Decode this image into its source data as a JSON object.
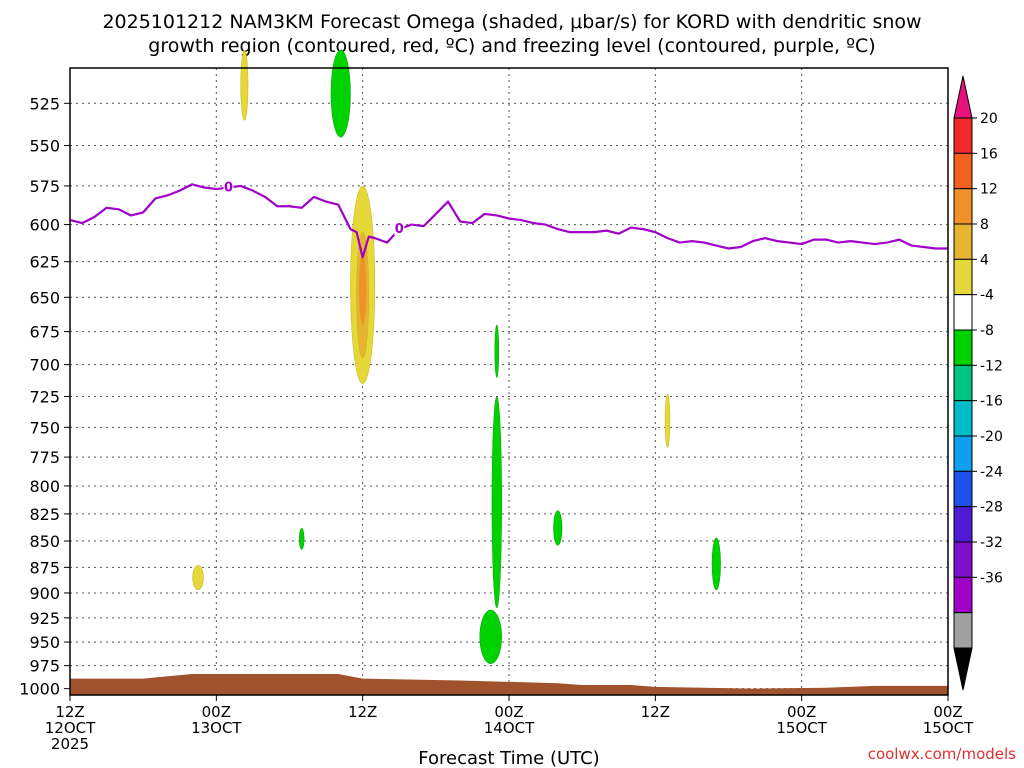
{
  "chart_data": {
    "type": "heatmap",
    "title_line1": "2025101212 NAM3KM Forecast Omega (shaded, μbar/s) for KORD with dendritic snow",
    "title_line2": "growth region (contoured, red, ºC) and freezing level (contoured, purple, ºC)",
    "xlabel": "Forecast Time (UTC)",
    "credit": "coolwx.com/models",
    "y_axis": {
      "ticks": [
        525,
        550,
        575,
        600,
        625,
        650,
        675,
        700,
        725,
        750,
        775,
        800,
        825,
        850,
        875,
        900,
        925,
        950,
        975,
        1000
      ],
      "range": [
        505,
        1007
      ],
      "scale": "log-pressure",
      "grid": true
    },
    "x_axis": {
      "range": [
        0,
        72
      ],
      "grid": true,
      "ticks": [
        {
          "hour": 0,
          "line1": "12Z",
          "line2": "12OCT",
          "line3": "2025"
        },
        {
          "hour": 12,
          "line1": "00Z",
          "line2": "13OCT",
          "line3": ""
        },
        {
          "hour": 24,
          "line1": "12Z",
          "line2": "",
          "line3": ""
        },
        {
          "hour": 36,
          "line1": "00Z",
          "line2": "14OCT",
          "line3": ""
        },
        {
          "hour": 48,
          "line1": "12Z",
          "line2": "",
          "line3": ""
        },
        {
          "hour": 60,
          "line1": "00Z",
          "line2": "15OCT",
          "line3": ""
        }
      ]
    },
    "colorbar": {
      "labels": [
        "20",
        "16",
        "12",
        "8",
        "4",
        "-4",
        "-8",
        "-12",
        "-16",
        "-20",
        "-24",
        "-28",
        "-32",
        "-36"
      ],
      "colors": [
        "#e8127f",
        "#f02a2a",
        "#f2601e",
        "#f0902a",
        "#e6b431",
        "#e6d838",
        "#ffffff",
        "#00d200",
        "#00c483",
        "#00bcc8",
        "#0f9fef",
        "#1e50eb",
        "#4f1ad4",
        "#7d10c8",
        "#a000c8",
        "#a0a0a0",
        "#000000"
      ]
    },
    "freezing_level": {
      "color": "#a000c8",
      "contour_label": "0",
      "x": [
        0,
        1,
        2,
        3,
        4,
        5,
        6,
        7,
        8,
        9,
        10,
        11,
        12,
        13,
        14,
        15,
        16,
        17,
        18,
        19,
        20,
        21,
        22,
        23,
        23.5,
        24,
        24.5,
        25,
        26,
        27,
        28,
        29,
        30,
        31,
        32,
        33,
        34,
        35,
        36,
        37,
        38,
        39,
        40,
        41,
        42,
        43,
        44,
        45,
        46,
        47,
        48,
        49,
        50,
        51,
        52,
        53,
        54,
        55,
        56,
        57,
        58,
        59,
        60,
        61,
        62,
        63,
        64,
        65,
        66,
        67,
        68,
        69,
        70,
        71,
        72
      ],
      "y": [
        597,
        599,
        595,
        589,
        590,
        594,
        592,
        583,
        581,
        578,
        574,
        576,
        577,
        576,
        575,
        578,
        582,
        588,
        588,
        589,
        582,
        585,
        587,
        603,
        605,
        622,
        608,
        609,
        612,
        603,
        600,
        601,
        593,
        585,
        598,
        599,
        593,
        594,
        596,
        597,
        599,
        600,
        603,
        605,
        605,
        605,
        604,
        606,
        602,
        603,
        605,
        609,
        612,
        611,
        612,
        614,
        616,
        615,
        611,
        609,
        611,
        612,
        613,
        610,
        610,
        612,
        611,
        612,
        613,
        612,
        610,
        614,
        615,
        616,
        616
      ]
    },
    "terrain": {
      "color": "#a0522d",
      "x": [
        0,
        6,
        10,
        22,
        24,
        32,
        40,
        42,
        46,
        48,
        52,
        56,
        62,
        66,
        72
      ],
      "y": [
        989,
        989,
        984,
        984,
        989,
        991,
        994,
        996,
        996,
        998,
        999,
        1000,
        999,
        997,
        997
      ]
    },
    "omega_features": [
      {
        "value": 5,
        "hour": 14.3,
        "p_center": 515,
        "half_hours": 0.3,
        "half_p": 20,
        "color": "#e6d838"
      },
      {
        "value": -5,
        "hour": 22.2,
        "p_center": 520,
        "half_hours": 0.8,
        "half_p": 25,
        "color": "#00d200"
      },
      {
        "value": 6,
        "hour": 24.0,
        "p_center": 645,
        "half_hours": 1.0,
        "half_p": 70,
        "color": "#e6d838"
      },
      {
        "value": 10,
        "hour": 24.0,
        "p_center": 650,
        "half_hours": 0.5,
        "half_p": 45,
        "color": "#e6b431"
      },
      {
        "value": 13,
        "hour": 24.0,
        "p_center": 645,
        "half_hours": 0.3,
        "half_p": 25,
        "color": "#f0902a"
      },
      {
        "value": -5,
        "hour": 35.0,
        "p_center": 690,
        "half_hours": 0.15,
        "half_p": 20,
        "color": "#00d200"
      },
      {
        "value": -5,
        "hour": 35.0,
        "p_center": 820,
        "half_hours": 0.4,
        "half_p": 95,
        "color": "#00d200"
      },
      {
        "value": 5,
        "hour": 10.5,
        "p_center": 885,
        "half_hours": 0.45,
        "half_p": 12,
        "color": "#e6d838"
      },
      {
        "value": -5,
        "hour": 19.0,
        "p_center": 848,
        "half_hours": 0.2,
        "half_p": 10,
        "color": "#00d200"
      },
      {
        "value": -6,
        "hour": 34.5,
        "p_center": 945,
        "half_hours": 0.9,
        "half_p": 28,
        "color": "#00d200"
      },
      {
        "value": 5,
        "hour": 49.0,
        "p_center": 745,
        "half_hours": 0.2,
        "half_p": 22,
        "color": "#e6d838"
      },
      {
        "value": -5,
        "hour": 40.0,
        "p_center": 838,
        "half_hours": 0.35,
        "half_p": 16,
        "color": "#00d200"
      },
      {
        "value": -5,
        "hour": 53.0,
        "p_center": 872,
        "half_hours": 0.35,
        "half_p": 25,
        "color": "#00d200"
      }
    ]
  }
}
